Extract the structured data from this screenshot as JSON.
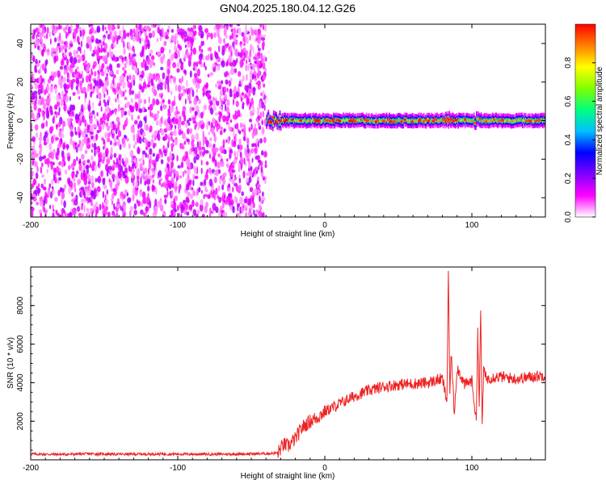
{
  "title": "GN04.2025.180.04.12.G26",
  "chart_data": [
    {
      "type": "heatmap",
      "xlabel": "Height of straight line (km)",
      "ylabel": "Frequency (Hz)",
      "xlim": [
        -200,
        150
      ],
      "ylim": [
        -50,
        50
      ],
      "x_ticks": [
        -200,
        -100,
        0,
        100
      ],
      "y_ticks": [
        -40,
        -20,
        0,
        20,
        40
      ],
      "colorbar": {
        "label": "Normalized spectral amplitude",
        "range": [
          0,
          1
        ],
        "ticks": [
          0.0,
          0.2,
          0.4,
          0.6,
          0.8
        ],
        "colors": [
          "#ffffff",
          "#ff00ff",
          "#8000ff",
          "#0000ff",
          "#00c0ff",
          "#00ff80",
          "#80ff00",
          "#ffff00",
          "#ff8000",
          "#ff0000"
        ]
      },
      "regions": [
        {
          "x": [
            -200,
            -40
          ],
          "freq_range": [
            -50,
            50
          ],
          "amplitude": "noise 0.0-0.15"
        },
        {
          "x": [
            -40,
            150
          ],
          "freq_center": 0,
          "bandwidth": 8,
          "amplitude": "signal 0.3-1.0"
        }
      ]
    },
    {
      "type": "line",
      "xlabel": "Height of straight line (km)",
      "ylabel": "SNR (10 * v/v)",
      "xlim": [
        -200,
        150
      ],
      "ylim": [
        0,
        10000
      ],
      "x_ticks": [
        -200,
        -100,
        0,
        100
      ],
      "y_ticks": [
        2000,
        4000,
        6000,
        8000
      ],
      "series": [
        {
          "color": "#ee2222",
          "x": [
            -200,
            -180,
            -160,
            -140,
            -120,
            -100,
            -80,
            -60,
            -40,
            -32,
            -30,
            -28,
            -25,
            -20,
            -15,
            -10,
            -5,
            0,
            5,
            10,
            15,
            20,
            30,
            40,
            50,
            60,
            70,
            75,
            80,
            83,
            84,
            85,
            86,
            88,
            90,
            95,
            100,
            103,
            104,
            105,
            106,
            107,
            108,
            110,
            115,
            120,
            130,
            140,
            150
          ],
          "values": [
            300,
            280,
            310,
            290,
            300,
            300,
            290,
            300,
            320,
            350,
            600,
            800,
            700,
            1100,
            1700,
            2000,
            2200,
            2500,
            2700,
            2900,
            3100,
            3300,
            3600,
            3800,
            3900,
            3950,
            4000,
            4100,
            4200,
            3000,
            9800,
            3500,
            5600,
            2400,
            4800,
            3900,
            4100,
            2000,
            6800,
            2800,
            7800,
            1800,
            4600,
            4200,
            4300,
            4300,
            4200,
            4300,
            4400
          ]
        }
      ]
    }
  ]
}
